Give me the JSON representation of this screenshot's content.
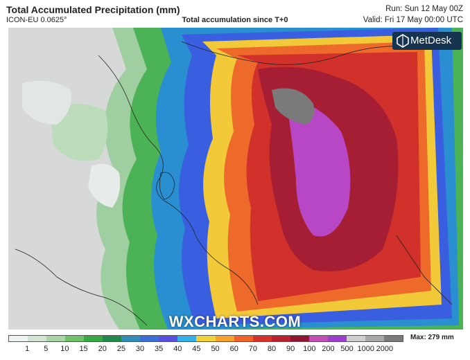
{
  "header": {
    "title": "Total Accumulated Precipitation (mm)",
    "model": "ICON-EU 0.0625°",
    "subtitle": "Total accumulation since T+0",
    "run": "Run: Sun 12 May 00Z",
    "valid": "Valid: Fri 17 May 00:00 UTC"
  },
  "logo": {
    "text": "MetDesk"
  },
  "watermark": "WXCHARTS.COM",
  "legend": {
    "tick_labels": [
      "1",
      "5",
      "10",
      "15",
      "20",
      "25",
      "30",
      "35",
      "40",
      "45",
      "50",
      "60",
      "70",
      "80",
      "90",
      "100",
      "200",
      "500",
      "1000",
      "2000"
    ],
    "max_label": "Max: 279 mm",
    "colors": [
      "#eef2f2",
      "#d2e4d4",
      "#a9d4a5",
      "#6fc16a",
      "#36a943",
      "#23894a",
      "#2f8db8",
      "#3c6fd6",
      "#5a4fe0",
      "#34b0e8",
      "#f2d23a",
      "#f7a22c",
      "#f0632b",
      "#d83228",
      "#b8212d",
      "#8f1530",
      "#c04eb4",
      "#9c3fd0",
      "#cfcfcf",
      "#a8a8a8",
      "#7a7a7a"
    ]
  }
}
